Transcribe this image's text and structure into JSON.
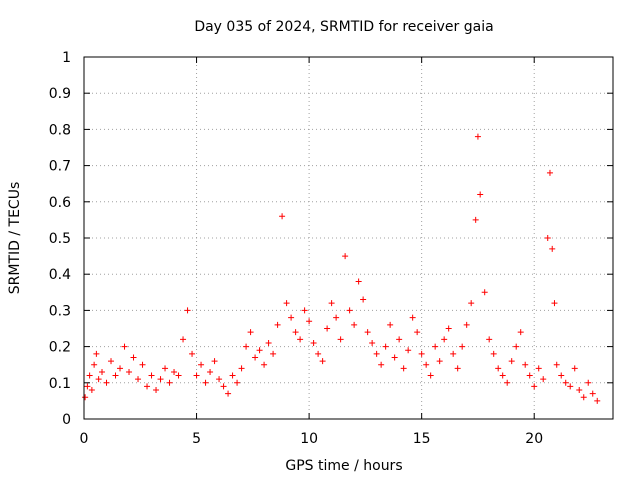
{
  "chart_data": {
    "type": "scatter",
    "title": "Day 035 of 2024, SRMTID for receiver gaia",
    "xlabel": "GPS time / hours",
    "ylabel": "SRMTID / TECUs",
    "xlim": [
      0,
      23.5
    ],
    "ylim": [
      0,
      1
    ],
    "xticks": [
      0,
      5,
      10,
      15,
      20
    ],
    "xtick_labels": [
      "0",
      "5",
      "10",
      "15",
      "20"
    ],
    "yticks": [
      0,
      0.1,
      0.2,
      0.3,
      0.4,
      0.5,
      0.6,
      0.7,
      0.8,
      0.9,
      1
    ],
    "ytick_labels": [
      "0",
      "0.1",
      "0.2",
      "0.3",
      "0.4",
      "0.5",
      "0.6",
      "0.7",
      "0.8",
      "0.9",
      "1"
    ],
    "grid": true,
    "marker": "+",
    "color": "#ff0000",
    "series": [
      {
        "name": "SRMTID",
        "x": [
          0.05,
          0.15,
          0.25,
          0.35,
          0.45,
          0.55,
          0.65,
          0.8,
          1.0,
          1.2,
          1.4,
          1.6,
          1.8,
          2.0,
          2.2,
          2.4,
          2.6,
          2.8,
          3.0,
          3.2,
          3.4,
          3.6,
          3.8,
          4.0,
          4.2,
          4.4,
          4.6,
          4.8,
          5.0,
          5.2,
          5.4,
          5.6,
          5.8,
          6.0,
          6.2,
          6.4,
          6.6,
          6.8,
          7.0,
          7.2,
          7.4,
          7.6,
          7.8,
          8.0,
          8.2,
          8.4,
          8.6,
          8.8,
          9.0,
          9.2,
          9.4,
          9.6,
          9.8,
          10.0,
          10.2,
          10.4,
          10.6,
          10.8,
          11.0,
          11.2,
          11.4,
          11.6,
          11.8,
          12.0,
          12.2,
          12.4,
          12.6,
          12.8,
          13.0,
          13.2,
          13.4,
          13.6,
          13.8,
          14.0,
          14.2,
          14.4,
          14.6,
          14.8,
          15.0,
          15.2,
          15.4,
          15.6,
          15.8,
          16.0,
          16.2,
          16.4,
          16.6,
          16.8,
          17.0,
          17.2,
          17.4,
          17.5,
          17.6,
          17.8,
          18.0,
          18.2,
          18.4,
          18.6,
          18.8,
          19.0,
          19.2,
          19.4,
          19.6,
          19.8,
          20.0,
          20.2,
          20.4,
          20.6,
          20.7,
          20.8,
          20.9,
          21.0,
          21.2,
          21.4,
          21.6,
          21.8,
          22.0,
          22.2,
          22.4,
          22.6,
          22.8
        ],
        "y": [
          0.06,
          0.09,
          0.12,
          0.08,
          0.15,
          0.18,
          0.11,
          0.13,
          0.1,
          0.16,
          0.12,
          0.14,
          0.2,
          0.13,
          0.17,
          0.11,
          0.15,
          0.09,
          0.12,
          0.08,
          0.11,
          0.14,
          0.1,
          0.13,
          0.12,
          0.22,
          0.3,
          0.18,
          0.12,
          0.15,
          0.1,
          0.13,
          0.16,
          0.11,
          0.09,
          0.07,
          0.12,
          0.1,
          0.14,
          0.2,
          0.24,
          0.17,
          0.19,
          0.15,
          0.21,
          0.18,
          0.26,
          0.56,
          0.32,
          0.28,
          0.24,
          0.22,
          0.3,
          0.27,
          0.21,
          0.18,
          0.16,
          0.25,
          0.32,
          0.28,
          0.22,
          0.45,
          0.3,
          0.26,
          0.38,
          0.33,
          0.24,
          0.21,
          0.18,
          0.15,
          0.2,
          0.26,
          0.17,
          0.22,
          0.14,
          0.19,
          0.28,
          0.24,
          0.18,
          0.15,
          0.12,
          0.2,
          0.16,
          0.22,
          0.25,
          0.18,
          0.14,
          0.2,
          0.26,
          0.32,
          0.55,
          0.78,
          0.62,
          0.35,
          0.22,
          0.18,
          0.14,
          0.12,
          0.1,
          0.16,
          0.2,
          0.24,
          0.15,
          0.12,
          0.09,
          0.14,
          0.11,
          0.5,
          0.68,
          0.47,
          0.32,
          0.15,
          0.12,
          0.1,
          0.09,
          0.14,
          0.08,
          0.06,
          0.1,
          0.07,
          0.05
        ]
      }
    ]
  }
}
